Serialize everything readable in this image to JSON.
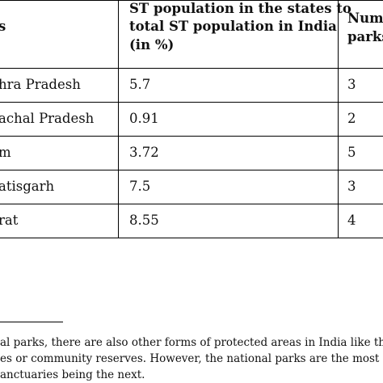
{
  "table": {
    "header": {
      "col1": "s",
      "col2_lines": [
        "ST population in the states to",
        "total ST population in India",
        "(in %)"
      ],
      "col3_lines": [
        "Num",
        "parks"
      ]
    },
    "rows": [
      {
        "state": "hra Pradesh",
        "st_pct": "5.7",
        "parks": "3"
      },
      {
        "state": "achal Pradesh",
        "st_pct": "0.91",
        "parks": "2"
      },
      {
        "state": "m",
        "st_pct": "3.72",
        "parks": "5"
      },
      {
        "state": "atisgarh",
        "st_pct": "7.5",
        "parks": "3"
      },
      {
        "state": "rat",
        "st_pct": "8.55",
        "parks": "4"
      }
    ]
  },
  "footnote": {
    "lines": [
      "al parks, there are also other forms of protected areas in India like the",
      "es or community reserves. However, the national parks are the most st",
      "anctuaries being the next."
    ]
  }
}
